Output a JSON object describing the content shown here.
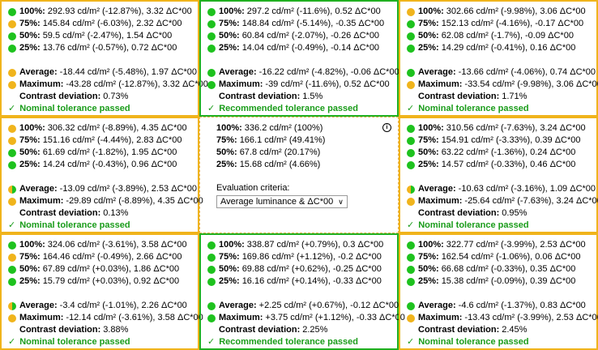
{
  "cells": [
    {
      "border": "yellow",
      "lines": [
        {
          "dot": "green",
          "label": "100%:",
          "value": "292.93 cd/m² (-12.87%), 3.32 ΔC*00"
        },
        {
          "dot": "yellow",
          "label": "75%:",
          "value": "145.84 cd/m² (-6.03%), 2.32 ΔC*00"
        },
        {
          "dot": "green",
          "label": "50%:",
          "value": "59.5 cd/m² (-2.47%), 1.54 ΔC*00"
        },
        {
          "dot": "green",
          "label": "25%:",
          "value": "13.76 cd/m² (-0.57%), 0.72 ΔC*00"
        }
      ],
      "average": {
        "dot": "yellow",
        "label": "Average:",
        "value": "-18.44 cd/m² (-5.48%), 1.97 ΔC*00"
      },
      "maximum": {
        "dot": "yellow",
        "label": "Maximum:",
        "value": "-43.28 cd/m² (-12.87%), 3.32 ΔC*00"
      },
      "contrast": {
        "label": "Contrast deviation:",
        "value": "0.73%"
      },
      "result": "Nominal tolerance passed"
    },
    {
      "border": "green",
      "lines": [
        {
          "dot": "green",
          "label": "100%:",
          "value": "297.2 cd/m² (-11.6%), 0.52 ΔC*00"
        },
        {
          "dot": "green",
          "label": "75%:",
          "value": "148.84 cd/m² (-5.14%), -0.35 ΔC*00"
        },
        {
          "dot": "green",
          "label": "50%:",
          "value": "60.84 cd/m² (-2.07%), -0.26 ΔC*00"
        },
        {
          "dot": "green",
          "label": "25%:",
          "value": "14.04 cd/m² (-0.49%), -0.14 ΔC*00"
        }
      ],
      "average": {
        "dot": "green",
        "label": "Average:",
        "value": "-16.22 cd/m² (-4.82%), -0.06 ΔC*00"
      },
      "maximum": {
        "dot": "green",
        "label": "Maximum:",
        "value": "-39 cd/m² (-11.6%), 0.52 ΔC*00"
      },
      "contrast": {
        "label": "Contrast deviation:",
        "value": "1.5%"
      },
      "result": "Recommended tolerance passed"
    },
    {
      "border": "yellow",
      "lines": [
        {
          "dot": "yellow",
          "label": "100%:",
          "value": "302.66 cd/m² (-9.98%), 3.06 ΔC*00"
        },
        {
          "dot": "green",
          "label": "75%:",
          "value": "152.13 cd/m² (-4.16%), -0.17 ΔC*00"
        },
        {
          "dot": "green",
          "label": "50%:",
          "value": "62.08 cd/m² (-1.7%), -0.09 ΔC*00"
        },
        {
          "dot": "green",
          "label": "25%:",
          "value": "14.29 cd/m² (-0.41%), 0.16 ΔC*00"
        }
      ],
      "average": {
        "dot": "green",
        "label": "Average:",
        "value": "-13.66 cd/m² (-4.06%), 0.74 ΔC*00"
      },
      "maximum": {
        "dot": "yellow",
        "label": "Maximum:",
        "value": "-33.54 cd/m² (-9.98%), 3.06 ΔC*00"
      },
      "contrast": {
        "label": "Contrast deviation:",
        "value": "1.71%"
      },
      "result": "Nominal tolerance passed"
    },
    {
      "border": "yellow",
      "lines": [
        {
          "dot": "yellow",
          "label": "100%:",
          "value": "306.32 cd/m² (-8.89%), 4.35 ΔC*00"
        },
        {
          "dot": "yellow",
          "label": "75%:",
          "value": "151.16 cd/m² (-4.44%), 2.83 ΔC*00"
        },
        {
          "dot": "green",
          "label": "50%:",
          "value": "61.69 cd/m² (-1.82%), 1.95 ΔC*00"
        },
        {
          "dot": "green",
          "label": "25%:",
          "value": "14.24 cd/m² (-0.43%), 0.96 ΔC*00"
        }
      ],
      "average": {
        "dot": "half",
        "label": "Average:",
        "value": "-13.09 cd/m² (-3.89%), 2.53 ΔC*00"
      },
      "maximum": {
        "dot": "yellow",
        "label": "Maximum:",
        "value": "-29.89 cd/m² (-8.89%), 4.35 ΔC*00"
      },
      "contrast": {
        "label": "Contrast deviation:",
        "value": "0.13%"
      },
      "result": "Nominal tolerance passed"
    },
    {
      "border": "yellow",
      "lines": [
        {
          "dot": "green",
          "label": "100%:",
          "value": "310.56 cd/m² (-7.63%), 3.24 ΔC*00"
        },
        {
          "dot": "green",
          "label": "75%:",
          "value": "154.91 cd/m² (-3.33%), 0.39 ΔC*00"
        },
        {
          "dot": "green",
          "label": "50%:",
          "value": "63.22 cd/m² (-1.36%), 0.24 ΔC*00"
        },
        {
          "dot": "green",
          "label": "25%:",
          "value": "14.57 cd/m² (-0.33%), 0.46 ΔC*00"
        }
      ],
      "average": {
        "dot": "half",
        "label": "Average:",
        "value": "-10.63 cd/m² (-3.16%), 1.09 ΔC*00"
      },
      "maximum": {
        "dot": "yellow",
        "label": "Maximum:",
        "value": "-25.64 cd/m² (-7.63%), 3.24 ΔC*00"
      },
      "contrast": {
        "label": "Contrast deviation:",
        "value": "0.95%"
      },
      "result": "Nominal tolerance passed"
    },
    {
      "border": "yellow",
      "lines": [
        {
          "dot": "green",
          "label": "100%:",
          "value": "324.06 cd/m² (-3.61%), 3.58 ΔC*00"
        },
        {
          "dot": "yellow",
          "label": "75%:",
          "value": "164.46 cd/m² (-0.49%), 2.66 ΔC*00"
        },
        {
          "dot": "green",
          "label": "50%:",
          "value": "67.89 cd/m² (+0.03%), 1.86 ΔC*00"
        },
        {
          "dot": "green",
          "label": "25%:",
          "value": "15.79 cd/m² (+0.03%), 0.92 ΔC*00"
        }
      ],
      "average": {
        "dot": "half",
        "label": "Average:",
        "value": "-3.4 cd/m² (-1.01%), 2.26 ΔC*00"
      },
      "maximum": {
        "dot": "yellow",
        "label": "Maximum:",
        "value": "-12.14 cd/m² (-3.61%), 3.58 ΔC*00"
      },
      "contrast": {
        "label": "Contrast deviation:",
        "value": "3.88%"
      },
      "result": "Nominal tolerance passed"
    },
    {
      "border": "green",
      "lines": [
        {
          "dot": "green",
          "label": "100%:",
          "value": "338.87 cd/m² (+0.79%), 0.3 ΔC*00"
        },
        {
          "dot": "green",
          "label": "75%:",
          "value": "169.86 cd/m² (+1.12%), -0.2 ΔC*00"
        },
        {
          "dot": "green",
          "label": "50%:",
          "value": "69.88 cd/m² (+0.62%), -0.25 ΔC*00"
        },
        {
          "dot": "green",
          "label": "25%:",
          "value": "16.16 cd/m² (+0.14%), -0.33 ΔC*00"
        }
      ],
      "average": {
        "dot": "green",
        "label": "Average:",
        "value": "+2.25 cd/m² (+0.67%), -0.12 ΔC*00"
      },
      "maximum": {
        "dot": "green",
        "label": "Maximum:",
        "value": "+3.75 cd/m² (+1.12%), -0.33 ΔC*00"
      },
      "contrast": {
        "label": "Contrast deviation:",
        "value": "2.25%"
      },
      "result": "Recommended tolerance passed"
    },
    {
      "border": "yellow",
      "lines": [
        {
          "dot": "green",
          "label": "100%:",
          "value": "322.77 cd/m² (-3.99%), 2.53 ΔC*00"
        },
        {
          "dot": "green",
          "label": "75%:",
          "value": "162.54 cd/m² (-1.06%), 0.06 ΔC*00"
        },
        {
          "dot": "green",
          "label": "50%:",
          "value": "66.68 cd/m² (-0.33%), 0.35 ΔC*00"
        },
        {
          "dot": "green",
          "label": "25%:",
          "value": "15.38 cd/m² (-0.09%), 0.39 ΔC*00"
        }
      ],
      "average": {
        "dot": "green",
        "label": "Average:",
        "value": "-4.6 cd/m² (-1.37%), 0.83 ΔC*00"
      },
      "maximum": {
        "dot": "yellow",
        "label": "Maximum:",
        "value": "-13.43 cd/m² (-3.99%), 2.53 ΔC*00"
      },
      "contrast": {
        "label": "Contrast deviation:",
        "value": "2.45%"
      },
      "result": "Nominal tolerance passed"
    }
  ],
  "center": {
    "lines": [
      {
        "label": "100%:",
        "value": "336.2 cd/m² (100%)"
      },
      {
        "label": "75%:",
        "value": "166.1 cd/m² (49.41%)"
      },
      {
        "label": "50%:",
        "value": "67.8 cd/m² (20.17%)"
      },
      {
        "label": "25%:",
        "value": "15.68 cd/m² (4.66%)"
      }
    ],
    "eval_title": "Evaluation criteria:",
    "eval_selected": "Average luminance & ΔC*00",
    "info_icon": "info-icon"
  },
  "colors": {
    "green": "#1ec21e",
    "yellow": "#f0b41c",
    "pass_text": "#1a9c1a"
  }
}
